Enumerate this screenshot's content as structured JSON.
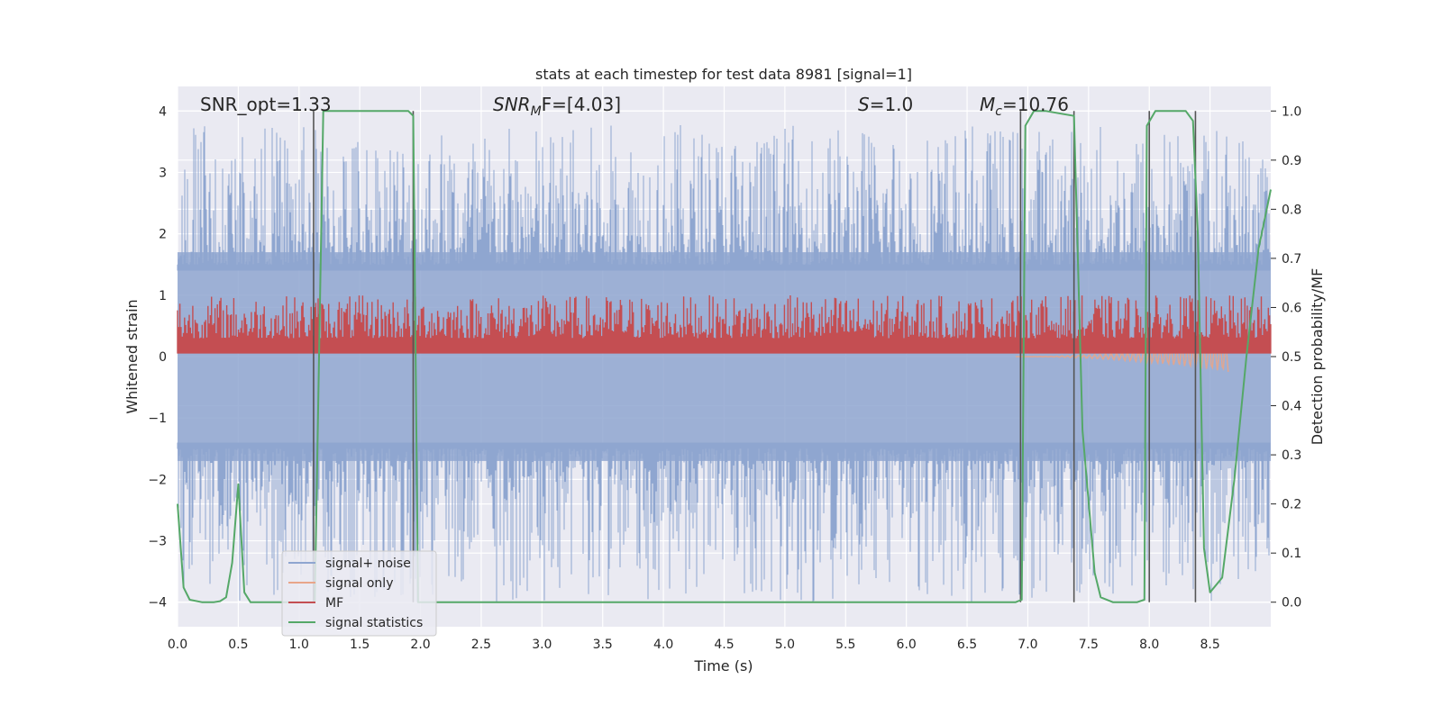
{
  "chart_data": {
    "type": "line",
    "title": "stats at each timestep for test data 8981 [signal=1]",
    "xlabel": "Time (s)",
    "ylabel": "Whitened strain",
    "ylabel_right": "Detection probability/MF",
    "xlim": [
      0,
      9.0
    ],
    "ylim": [
      -4.4,
      4.4
    ],
    "ylim_right": [
      -0.05,
      1.05
    ],
    "grid": true,
    "x_ticks": [
      "0.0",
      "0.5",
      "1.0",
      "1.5",
      "2.0",
      "2.5",
      "3.0",
      "3.5",
      "4.0",
      "4.5",
      "5.0",
      "5.5",
      "6.0",
      "6.5",
      "7.0",
      "7.5",
      "8.0",
      "8.5"
    ],
    "x_tick_values": [
      0,
      0.5,
      1.0,
      1.5,
      2.0,
      2.5,
      3.0,
      3.5,
      4.0,
      4.5,
      5.0,
      5.5,
      6.0,
      6.5,
      7.0,
      7.5,
      8.0,
      8.5
    ],
    "y_ticks": [
      "−4",
      "−3",
      "−2",
      "−1",
      "0",
      "1",
      "2",
      "3",
      "4"
    ],
    "y_tick_values": [
      -4,
      -3,
      -2,
      -1,
      0,
      1,
      2,
      3,
      4
    ],
    "y_right_ticks": [
      "0.0",
      "0.1",
      "0.2",
      "0.3",
      "0.4",
      "0.5",
      "0.6",
      "0.7",
      "0.8",
      "0.9",
      "1.0"
    ],
    "y_right_tick_values": [
      0,
      0.1,
      0.2,
      0.3,
      0.4,
      0.5,
      0.6,
      0.7,
      0.8,
      0.9,
      1.0
    ],
    "annotations": {
      "snr_opt": "SNR_opt=1.33",
      "snr_mf_main": "SNR",
      "snr_mf_sub": "M",
      "snr_mf_rest": "F=[4.03]",
      "s_main": "S",
      "s_rest": "=1.0",
      "mc_main": "M",
      "mc_sub": "c",
      "mc_rest": "=10.76"
    },
    "legend": {
      "placement": "lower-left",
      "entries": [
        {
          "label": "signal+ noise",
          "color": "#8fa6d0"
        },
        {
          "label": "signal only",
          "color": "#e8a58a"
        },
        {
          "label": "MF",
          "color": "#c44e52"
        },
        {
          "label": "signal statistics",
          "color": "#55a868"
        }
      ]
    },
    "colors": {
      "background": "#eaeaf2",
      "grid": "#ffffff",
      "noise": "#8fa6d0",
      "signal": "#e8a58a",
      "mf": "#c44e52",
      "stats": "#55a868",
      "vline": "#555555"
    },
    "noise_series": {
      "name": "signal+ noise",
      "band_abs": 1.7,
      "spike_max": 3.8,
      "spike_min": -4.0
    },
    "mf_series": {
      "name": "MF",
      "band": [
        0.05,
        0.75
      ]
    },
    "signal_only_series": {
      "name": "signal only",
      "x_range": [
        6.9,
        8.65
      ],
      "amplitude_max": 0.25
    },
    "stats_series": {
      "name": "signal statistics",
      "axis": "right",
      "x": [
        0.0,
        0.05,
        0.1,
        0.2,
        0.3,
        0.35,
        0.4,
        0.45,
        0.5,
        0.55,
        0.6,
        1.0,
        1.13,
        1.2,
        1.3,
        1.9,
        1.94,
        1.98,
        2.05,
        6.9,
        6.95,
        6.98,
        7.05,
        7.15,
        7.38,
        7.45,
        7.55,
        7.6,
        7.7,
        7.9,
        7.96,
        7.98,
        8.05,
        8.3,
        8.36,
        8.4,
        8.45,
        8.5,
        8.6,
        8.7,
        8.8,
        8.9,
        9.0
      ],
      "y": [
        0.2,
        0.03,
        0.005,
        0.0,
        0.0,
        0.002,
        0.01,
        0.08,
        0.24,
        0.02,
        0.0,
        0.0,
        0.0,
        1.0,
        1.0,
        1.0,
        0.99,
        0.0,
        0.0,
        0.0,
        0.005,
        0.97,
        1.0,
        1.0,
        0.99,
        0.35,
        0.06,
        0.01,
        0.0,
        0.0,
        0.005,
        0.97,
        1.0,
        1.0,
        0.98,
        0.75,
        0.11,
        0.02,
        0.05,
        0.25,
        0.5,
        0.72,
        0.84
      ]
    },
    "vlines_x": [
      1.12,
      1.94,
      6.94,
      7.38,
      8.0,
      8.38
    ]
  }
}
